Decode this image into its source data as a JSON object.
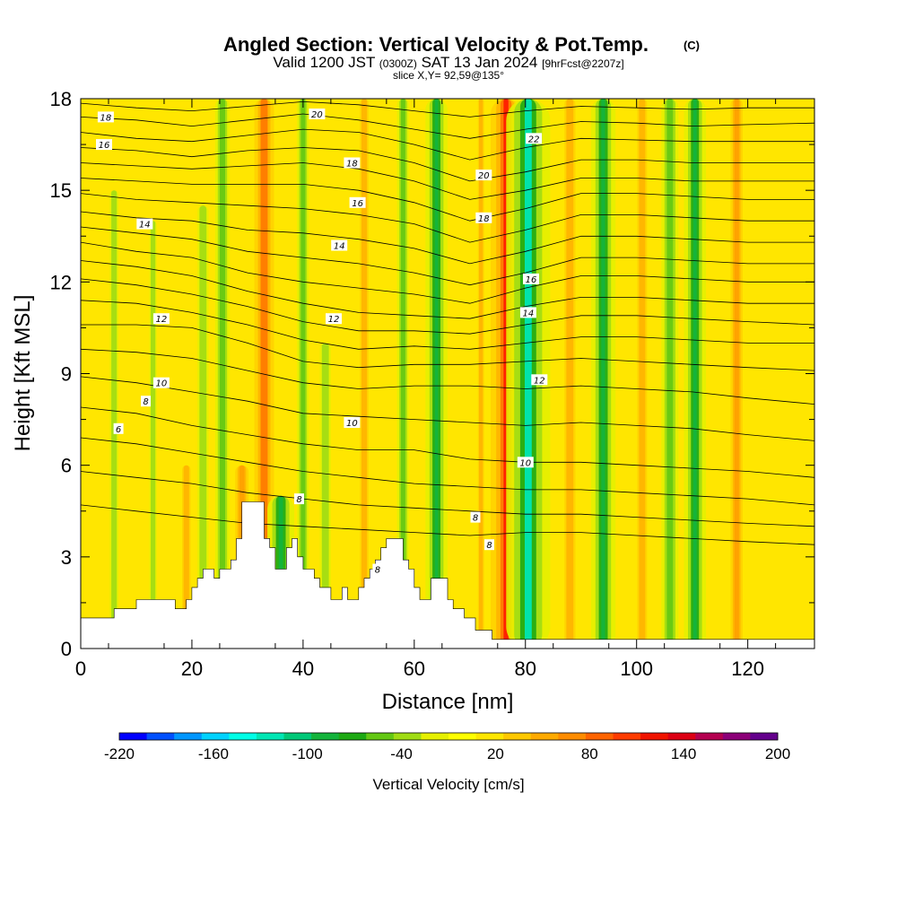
{
  "title": {
    "main": "Angled Section: Vertical Velocity & Pot.Temp.",
    "main_tag": "(C)",
    "valid_a": "Valid 1200 JST",
    "valid_zulu": "(0300Z)",
    "valid_b": "SAT 13 Jan 2024",
    "fcst": "[9hrFcst@2207z]",
    "slice": "slice X,Y= 92,59@135°"
  },
  "chart_data": {
    "type": "heatmap",
    "xlabel": "Distance [nm]",
    "ylabel": "Height [Kft MSL]",
    "xlim": [
      0,
      132
    ],
    "ylim": [
      0,
      18
    ],
    "x_ticks": [
      "0",
      "20",
      "40",
      "60",
      "80",
      "100",
      "120"
    ],
    "y_ticks": [
      "0",
      "3",
      "6",
      "9",
      "12",
      "15",
      "18"
    ],
    "colorbar": {
      "label": "Vertical Velocity [cm/s]",
      "tick_labels": [
        "-220",
        "-160",
        "-100",
        "-40",
        "20",
        "80",
        "140",
        "200"
      ],
      "colors": [
        "#0000ff",
        "#0050ff",
        "#0096ff",
        "#00d2ff",
        "#00ffe6",
        "#00e6b4",
        "#00c878",
        "#14b43c",
        "#1eaa14",
        "#64c814",
        "#a0dc14",
        "#e6f000",
        "#ffff00",
        "#ffe600",
        "#ffc800",
        "#ffaa00",
        "#ff8c00",
        "#ff6400",
        "#ff3c00",
        "#f01400",
        "#dc0014",
        "#b40050",
        "#8c0078",
        "#64008c"
      ]
    },
    "velocity_bands": [
      {
        "x": 6,
        "ymax": 15,
        "w": -0.7
      },
      {
        "x": 13,
        "ymax": 14,
        "w": -0.6
      },
      {
        "x": 19,
        "ymax": 6,
        "w": 0.7
      },
      {
        "x": 22,
        "ymax": 14.5,
        "w": -0.9
      },
      {
        "x": 25.5,
        "ymax": 18,
        "w": -1.2
      },
      {
        "x": 29,
        "ymax": 6,
        "w": 1.1
      },
      {
        "x": 33,
        "ymax": 18,
        "w": 1.6
      },
      {
        "x": 36,
        "ymax": 5,
        "w": -2.2
      },
      {
        "x": 40,
        "ymax": 18,
        "w": -1.0
      },
      {
        "x": 44,
        "ymax": 10,
        "w": -0.9
      },
      {
        "x": 51,
        "ymax": 18,
        "w": 0.7
      },
      {
        "x": 58,
        "ymax": 18,
        "w": -1.0
      },
      {
        "x": 64,
        "ymax": 18,
        "w": -1.8
      },
      {
        "x": 72,
        "ymax": 18,
        "w": 0.5
      },
      {
        "x": 76.5,
        "ymax": 18,
        "w": 2.5
      },
      {
        "x": 80.5,
        "ymax": 18,
        "w": -3.6
      },
      {
        "x": 88,
        "ymax": 18,
        "w": 0.9
      },
      {
        "x": 94,
        "ymax": 18,
        "w": -2.0
      },
      {
        "x": 101,
        "ymax": 18,
        "w": 0.8
      },
      {
        "x": 106,
        "ymax": 18,
        "w": -1.4
      },
      {
        "x": 110.5,
        "ymax": 18,
        "w": -1.8
      },
      {
        "x": 118,
        "ymax": 18,
        "w": 1.0
      }
    ],
    "terrain": [
      [
        0,
        1
      ],
      [
        6,
        1
      ],
      [
        6,
        1.3
      ],
      [
        10,
        1.3
      ],
      [
        10,
        1.6
      ],
      [
        17,
        1.6
      ],
      [
        17,
        1.3
      ],
      [
        19,
        1.3
      ],
      [
        19,
        1.6
      ],
      [
        20,
        1.6
      ],
      [
        20,
        2
      ],
      [
        21,
        2
      ],
      [
        21,
        2.3
      ],
      [
        22,
        2.3
      ],
      [
        22,
        2.6
      ],
      [
        24,
        2.6
      ],
      [
        24,
        2.3
      ],
      [
        25,
        2.3
      ],
      [
        25,
        2.6
      ],
      [
        27,
        2.6
      ],
      [
        27,
        2.9
      ],
      [
        28,
        2.9
      ],
      [
        28,
        3.6
      ],
      [
        29,
        3.6
      ],
      [
        29,
        4.8
      ],
      [
        33,
        4.8
      ],
      [
        33,
        3.6
      ],
      [
        34,
        3.6
      ],
      [
        34,
        3.3
      ],
      [
        35,
        3.3
      ],
      [
        35,
        2.6
      ],
      [
        37,
        2.6
      ],
      [
        37,
        3.3
      ],
      [
        38,
        3.3
      ],
      [
        38,
        3.6
      ],
      [
        39,
        3.6
      ],
      [
        39,
        3
      ],
      [
        40,
        3
      ],
      [
        40,
        2.6
      ],
      [
        42,
        2.6
      ],
      [
        42,
        2.3
      ],
      [
        43,
        2.3
      ],
      [
        43,
        2
      ],
      [
        45,
        2
      ],
      [
        45,
        1.6
      ],
      [
        47,
        1.6
      ],
      [
        47,
        2
      ],
      [
        48,
        2
      ],
      [
        48,
        1.6
      ],
      [
        50,
        1.6
      ],
      [
        50,
        2
      ],
      [
        51,
        2
      ],
      [
        51,
        2.3
      ],
      [
        52,
        2.3
      ],
      [
        52,
        2.6
      ],
      [
        53,
        2.6
      ],
      [
        53,
        2.9
      ],
      [
        54,
        2.9
      ],
      [
        54,
        3.3
      ],
      [
        55,
        3.3
      ],
      [
        55,
        3.6
      ],
      [
        58,
        3.6
      ],
      [
        58,
        2.9
      ],
      [
        59,
        2.9
      ],
      [
        59,
        2.6
      ],
      [
        60,
        2.6
      ],
      [
        60,
        2
      ],
      [
        61,
        2
      ],
      [
        61,
        1.6
      ],
      [
        63,
        1.6
      ],
      [
        63,
        2.3
      ],
      [
        66,
        2.3
      ],
      [
        66,
        1.6
      ],
      [
        67,
        1.6
      ],
      [
        67,
        1.3
      ],
      [
        69,
        1.3
      ],
      [
        69,
        1
      ],
      [
        71,
        1
      ],
      [
        71,
        0.6
      ],
      [
        74,
        0.6
      ],
      [
        74,
        0.3
      ],
      [
        132,
        0.3
      ]
    ],
    "isentropes": [
      {
        "x": [
          0,
          10,
          20,
          30,
          40,
          50,
          60,
          70,
          80,
          90,
          100,
          110,
          120,
          132
        ],
        "y": [
          17.85,
          17.7,
          17.6,
          17.75,
          17.9,
          17.8,
          17.6,
          17.4,
          17.6,
          17.75,
          17.7,
          17.65,
          17.7,
          17.7
        ]
      },
      {
        "x": [
          0,
          10,
          20,
          30,
          40,
          50,
          60,
          70,
          80,
          90,
          100,
          110,
          120,
          132
        ],
        "y": [
          17.4,
          17.3,
          17.1,
          17.3,
          17.5,
          17.3,
          17,
          16.7,
          17,
          17.25,
          17.2,
          17.1,
          17.15,
          17.2
        ]
      },
      {
        "x": [
          0,
          10,
          20,
          30,
          40,
          50,
          60,
          70,
          80,
          90,
          100,
          110,
          120,
          132
        ],
        "y": [
          16.9,
          16.7,
          16.6,
          16.8,
          17,
          16.9,
          16.5,
          16,
          16.4,
          16.7,
          16.65,
          16.6,
          16.6,
          16.6
        ],
        "label": "22",
        "lx": 110
      },
      {
        "x": [
          0,
          10,
          20,
          30,
          40,
          50,
          60,
          70,
          80,
          90,
          100,
          110,
          120,
          132
        ],
        "y": [
          16.4,
          16.3,
          16.1,
          16.3,
          16.4,
          16.3,
          15.9,
          15.3,
          15.6,
          16,
          16,
          15.9,
          15.9,
          15.9
        ]
      },
      {
        "x": [
          0,
          10,
          20,
          30,
          40,
          50,
          60,
          70,
          80,
          90,
          100,
          110,
          120,
          132
        ],
        "y": [
          15.9,
          15.8,
          15.7,
          15.8,
          15.9,
          15.7,
          15.3,
          14.7,
          15,
          15.4,
          15.4,
          15.3,
          15.3,
          15.3
        ],
        "label": "20",
        "lx": 90
      }
    ],
    "isentropes_mid": [
      {
        "x": [
          0,
          10,
          20,
          30,
          40,
          50,
          60,
          70,
          80,
          90,
          100,
          110,
          120,
          132
        ],
        "y": [
          15.4,
          15.3,
          15.2,
          15.2,
          15.2,
          15,
          14.6,
          14,
          14.4,
          14.9,
          14.9,
          14.8,
          14.7,
          14.7
        ]
      },
      {
        "x": [
          0,
          10,
          20,
          30,
          40,
          50,
          60,
          70,
          80,
          90,
          100,
          110,
          120,
          132
        ],
        "y": [
          14.9,
          14.7,
          14.6,
          14.5,
          14.4,
          14.2,
          13.9,
          13.3,
          13.7,
          14.2,
          14.2,
          14.1,
          14,
          14
        ]
      },
      {
        "x": [
          0,
          10,
          20,
          30,
          40,
          50,
          60,
          70,
          80,
          90,
          100,
          110,
          120,
          132
        ],
        "y": [
          14.3,
          14.1,
          14,
          13.7,
          13.6,
          13.4,
          13.1,
          12.6,
          13,
          13.5,
          13.5,
          13.4,
          13.3,
          13.3
        ],
        "label": "18",
        "lx": 91
      },
      {
        "x": [
          0,
          10,
          20,
          30,
          40,
          50,
          60,
          70,
          80,
          90,
          100,
          110,
          120,
          132
        ],
        "y": [
          13.8,
          13.6,
          13.4,
          13,
          12.8,
          12.6,
          12.3,
          11.9,
          12.3,
          12.8,
          12.8,
          12.7,
          12.6,
          12.6
        ]
      },
      {
        "x": [
          0,
          10,
          20,
          30,
          40,
          50,
          60,
          70,
          80,
          90,
          100,
          110,
          120,
          132
        ],
        "y": [
          13.3,
          13,
          12.8,
          12.3,
          12,
          11.8,
          11.6,
          11.3,
          11.8,
          12.2,
          12.2,
          12.1,
          12,
          12
        ],
        "label": "16",
        "lx": 101
      },
      {
        "x": [
          0,
          10,
          20,
          30,
          40,
          50,
          60,
          70,
          80,
          90,
          100,
          110,
          120,
          132
        ],
        "y": [
          12.7,
          12.5,
          12.2,
          11.7,
          11.3,
          11,
          10.9,
          10.8,
          11.2,
          11.5,
          11.5,
          11.4,
          11.3,
          11.3
        ]
      },
      {
        "x": [
          0,
          10,
          20,
          30,
          40,
          50,
          60,
          70,
          80,
          90,
          100,
          110,
          120,
          132
        ],
        "y": [
          12.1,
          11.9,
          11.6,
          11.2,
          10.7,
          10.4,
          10.4,
          10.3,
          10.6,
          10.9,
          10.9,
          10.8,
          10.7,
          10.6
        ],
        "label": "14",
        "lx": 100
      },
      {
        "x": [
          0,
          10,
          20,
          30,
          40,
          50,
          60,
          70,
          80,
          90,
          100,
          110,
          120,
          132
        ],
        "y": [
          11.4,
          11.3,
          11,
          10.6,
          10.1,
          9.8,
          9.9,
          9.8,
          10,
          10.2,
          10.2,
          10.1,
          10,
          10
        ]
      },
      {
        "x": [
          0,
          10,
          20,
          30,
          40,
          50,
          60,
          70,
          80,
          90,
          100,
          110,
          120,
          132
        ],
        "y": [
          10.6,
          10.6,
          10.5,
          10,
          9.4,
          9.2,
          9.3,
          9.3,
          9.4,
          9.5,
          9.4,
          9.3,
          9.2,
          9.1
        ],
        "label": "12",
        "lx": 104
      },
      {
        "x": [
          0,
          10,
          20,
          30,
          40,
          50,
          60,
          70,
          80,
          90,
          100,
          110,
          120,
          132
        ],
        "y": [
          9.8,
          9.7,
          9.5,
          9.1,
          8.7,
          8.5,
          8.6,
          8.6,
          8.5,
          8.6,
          8.5,
          8.4,
          8.2,
          8
        ]
      },
      {
        "x": [
          0,
          10,
          20,
          30,
          40,
          50,
          60,
          70,
          80,
          90,
          100,
          110,
          120,
          132
        ],
        "y": [
          8.9,
          8.7,
          8.4,
          8.1,
          7.7,
          7.6,
          7.5,
          7.4,
          7.3,
          7.4,
          7.3,
          7.2,
          7,
          6.8
        ],
        "label": "10",
        "lx": 66
      },
      {
        "x": [
          0,
          10,
          20,
          30,
          40,
          50,
          60,
          70,
          80,
          90,
          100,
          110,
          120,
          132
        ],
        "y": [
          7.9,
          7.7,
          7.3,
          7,
          6.7,
          6.5,
          6.5,
          6.2,
          6.1,
          6.1,
          6,
          5.9,
          5.8,
          5.6
        ]
      },
      {
        "x": [
          0,
          10,
          20,
          30,
          40,
          50,
          60,
          70,
          80,
          90,
          100,
          110,
          120,
          132
        ],
        "y": [
          6.9,
          6.7,
          6.4,
          6.1,
          5.8,
          5.6,
          5.4,
          5.3,
          5.2,
          5.2,
          5.1,
          5,
          4.9,
          4.7
        ]
      },
      {
        "x": [
          0,
          10,
          20,
          30,
          40,
          50,
          60,
          70,
          80,
          90,
          100,
          110,
          120,
          132
        ],
        "y": [
          5.8,
          5.6,
          5.4,
          5.1,
          4.9,
          4.7,
          4.6,
          4.5,
          4.4,
          4.4,
          4.3,
          4.2,
          4.1,
          4
        ]
      },
      {
        "x": [
          0,
          10,
          20,
          30,
          40,
          50,
          60,
          70,
          80,
          90,
          100,
          110,
          120,
          132
        ],
        "y": [
          4.7,
          4.5,
          4.3,
          4.1,
          4,
          3.9,
          3.8,
          3.7,
          3.8,
          3.8,
          3.7,
          3.6,
          3.5,
          3.4
        ],
        "label": "8",
        "lx": 93
      }
    ],
    "contour_labels": [
      {
        "text": "18",
        "x": 4.5,
        "y": 17.4
      },
      {
        "text": "16",
        "x": 4.2,
        "y": 16.5
      },
      {
        "text": "14",
        "x": 11.5,
        "y": 13.9
      },
      {
        "text": "12",
        "x": 14.5,
        "y": 10.8
      },
      {
        "text": "10",
        "x": 14.5,
        "y": 8.7
      },
      {
        "text": "8",
        "x": 11.7,
        "y": 8.1
      },
      {
        "text": "6",
        "x": 6.8,
        "y": 7.2
      },
      {
        "text": "20",
        "x": 42.5,
        "y": 17.5
      },
      {
        "text": "18",
        "x": 48.8,
        "y": 15.9
      },
      {
        "text": "16",
        "x": 49.8,
        "y": 14.6
      },
      {
        "text": "14",
        "x": 46.5,
        "y": 13.2
      },
      {
        "text": "12",
        "x": 45.5,
        "y": 10.8
      },
      {
        "text": "10",
        "x": 48.8,
        "y": 7.4
      },
      {
        "text": "8",
        "x": 39.3,
        "y": 4.9
      },
      {
        "text": "8",
        "x": 53.4,
        "y": 2.6
      },
      {
        "text": "22",
        "x": 81.5,
        "y": 16.7
      },
      {
        "text": "20",
        "x": 72.5,
        "y": 15.5
      },
      {
        "text": "18",
        "x": 72.5,
        "y": 14.1
      },
      {
        "text": "16",
        "x": 81,
        "y": 12.1
      },
      {
        "text": "14",
        "x": 80.5,
        "y": 11
      },
      {
        "text": "12",
        "x": 82.5,
        "y": 8.8
      },
      {
        "text": "10",
        "x": 80,
        "y": 6.1
      },
      {
        "text": "8",
        "x": 71,
        "y": 4.3
      },
      {
        "text": "8",
        "x": 73.5,
        "y": 3.4
      }
    ]
  }
}
